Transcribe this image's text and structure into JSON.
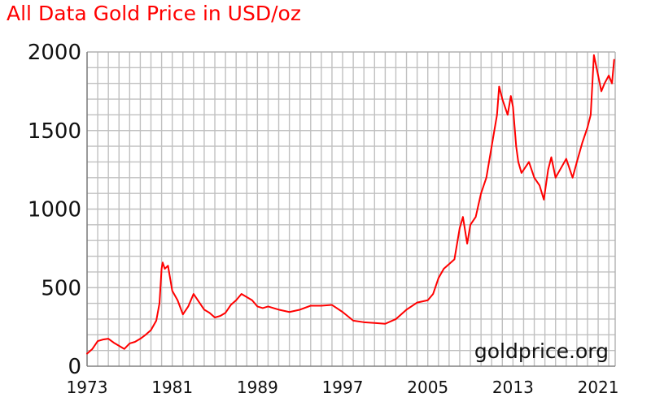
{
  "chart_data": {
    "type": "line",
    "title": "All Data Gold Price in USD/oz",
    "xlabel": "",
    "ylabel": "",
    "xlim": [
      1973,
      2022.6
    ],
    "ylim": [
      0,
      2000
    ],
    "y_ticks": [
      0,
      500,
      1000,
      1500,
      2000
    ],
    "x_tick_labels": [
      "1973",
      "1981",
      "1989",
      "1997",
      "2005",
      "2013",
      "2021"
    ],
    "grid": true,
    "legend": "none",
    "annotation": "goldprice.org",
    "series": [
      {
        "color": "#ff0000",
        "x": [
          1973.0,
          1973.5,
          1974.0,
          1974.5,
          1975.0,
          1975.5,
          1976.0,
          1976.5,
          1977.0,
          1977.5,
          1978.0,
          1978.5,
          1979.0,
          1979.5,
          1979.8,
          1980.0,
          1980.1,
          1980.3,
          1980.6,
          1981.0,
          1981.5,
          1982.0,
          1982.5,
          1983.0,
          1983.5,
          1984.0,
          1984.5,
          1985.0,
          1985.5,
          1986.0,
          1986.5,
          1987.0,
          1987.5,
          1988.0,
          1988.5,
          1989.0,
          1989.5,
          1990.0,
          1991.0,
          1992.0,
          1993.0,
          1994.0,
          1995.0,
          1996.0,
          1997.0,
          1998.0,
          1999.0,
          2000.0,
          2001.0,
          2002.0,
          2003.0,
          2004.0,
          2005.0,
          2005.5,
          2006.0,
          2006.5,
          2007.0,
          2007.5,
          2008.0,
          2008.3,
          2008.7,
          2009.0,
          2009.5,
          2010.0,
          2010.5,
          2011.0,
          2011.5,
          2011.7,
          2012.0,
          2012.5,
          2012.8,
          2013.0,
          2013.3,
          2013.5,
          2013.8,
          2014.0,
          2014.5,
          2015.0,
          2015.5,
          2015.9,
          2016.3,
          2016.6,
          2017.0,
          2017.5,
          2018.0,
          2018.6,
          2019.0,
          2019.5,
          2020.0,
          2020.3,
          2020.6,
          2021.0,
          2021.3,
          2021.6,
          2022.0,
          2022.3,
          2022.5
        ],
        "y": [
          80,
          110,
          160,
          170,
          175,
          150,
          130,
          110,
          145,
          155,
          175,
          200,
          230,
          290,
          400,
          620,
          660,
          620,
          640,
          480,
          420,
          330,
          380,
          460,
          410,
          360,
          340,
          310,
          320,
          340,
          390,
          420,
          460,
          440,
          420,
          380,
          370,
          380,
          360,
          345,
          360,
          385,
          385,
          390,
          345,
          290,
          280,
          275,
          270,
          300,
          360,
          405,
          420,
          460,
          560,
          620,
          650,
          680,
          880,
          950,
          780,
          900,
          950,
          1100,
          1200,
          1400,
          1600,
          1780,
          1700,
          1600,
          1720,
          1650,
          1400,
          1300,
          1230,
          1250,
          1300,
          1200,
          1150,
          1060,
          1250,
          1330,
          1200,
          1260,
          1320,
          1200,
          1300,
          1420,
          1520,
          1600,
          1980,
          1850,
          1750,
          1800,
          1850,
          1800,
          1950
        ]
      }
    ]
  }
}
